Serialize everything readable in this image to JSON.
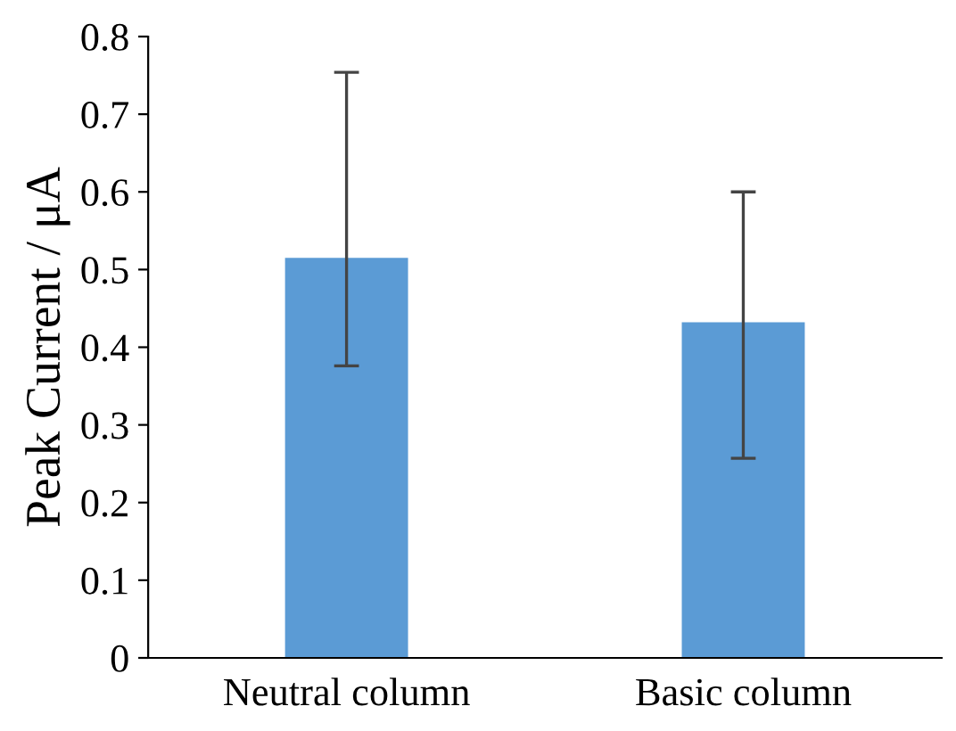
{
  "chart_data": {
    "type": "bar",
    "ylabel": "Peak Current / μA",
    "categories": [
      "Neutral column",
      "Basic column"
    ],
    "values": [
      0.515,
      0.432
    ],
    "errors": [
      [
        0.376,
        0.754
      ],
      [
        0.257,
        0.6
      ]
    ],
    "color": "#5b9bd5",
    "ylim": [
      0,
      0.8
    ],
    "yticks": [
      0,
      0.1,
      0.2,
      0.3,
      0.4,
      0.5,
      0.6,
      0.7,
      0.8
    ],
    "grid": false
  }
}
